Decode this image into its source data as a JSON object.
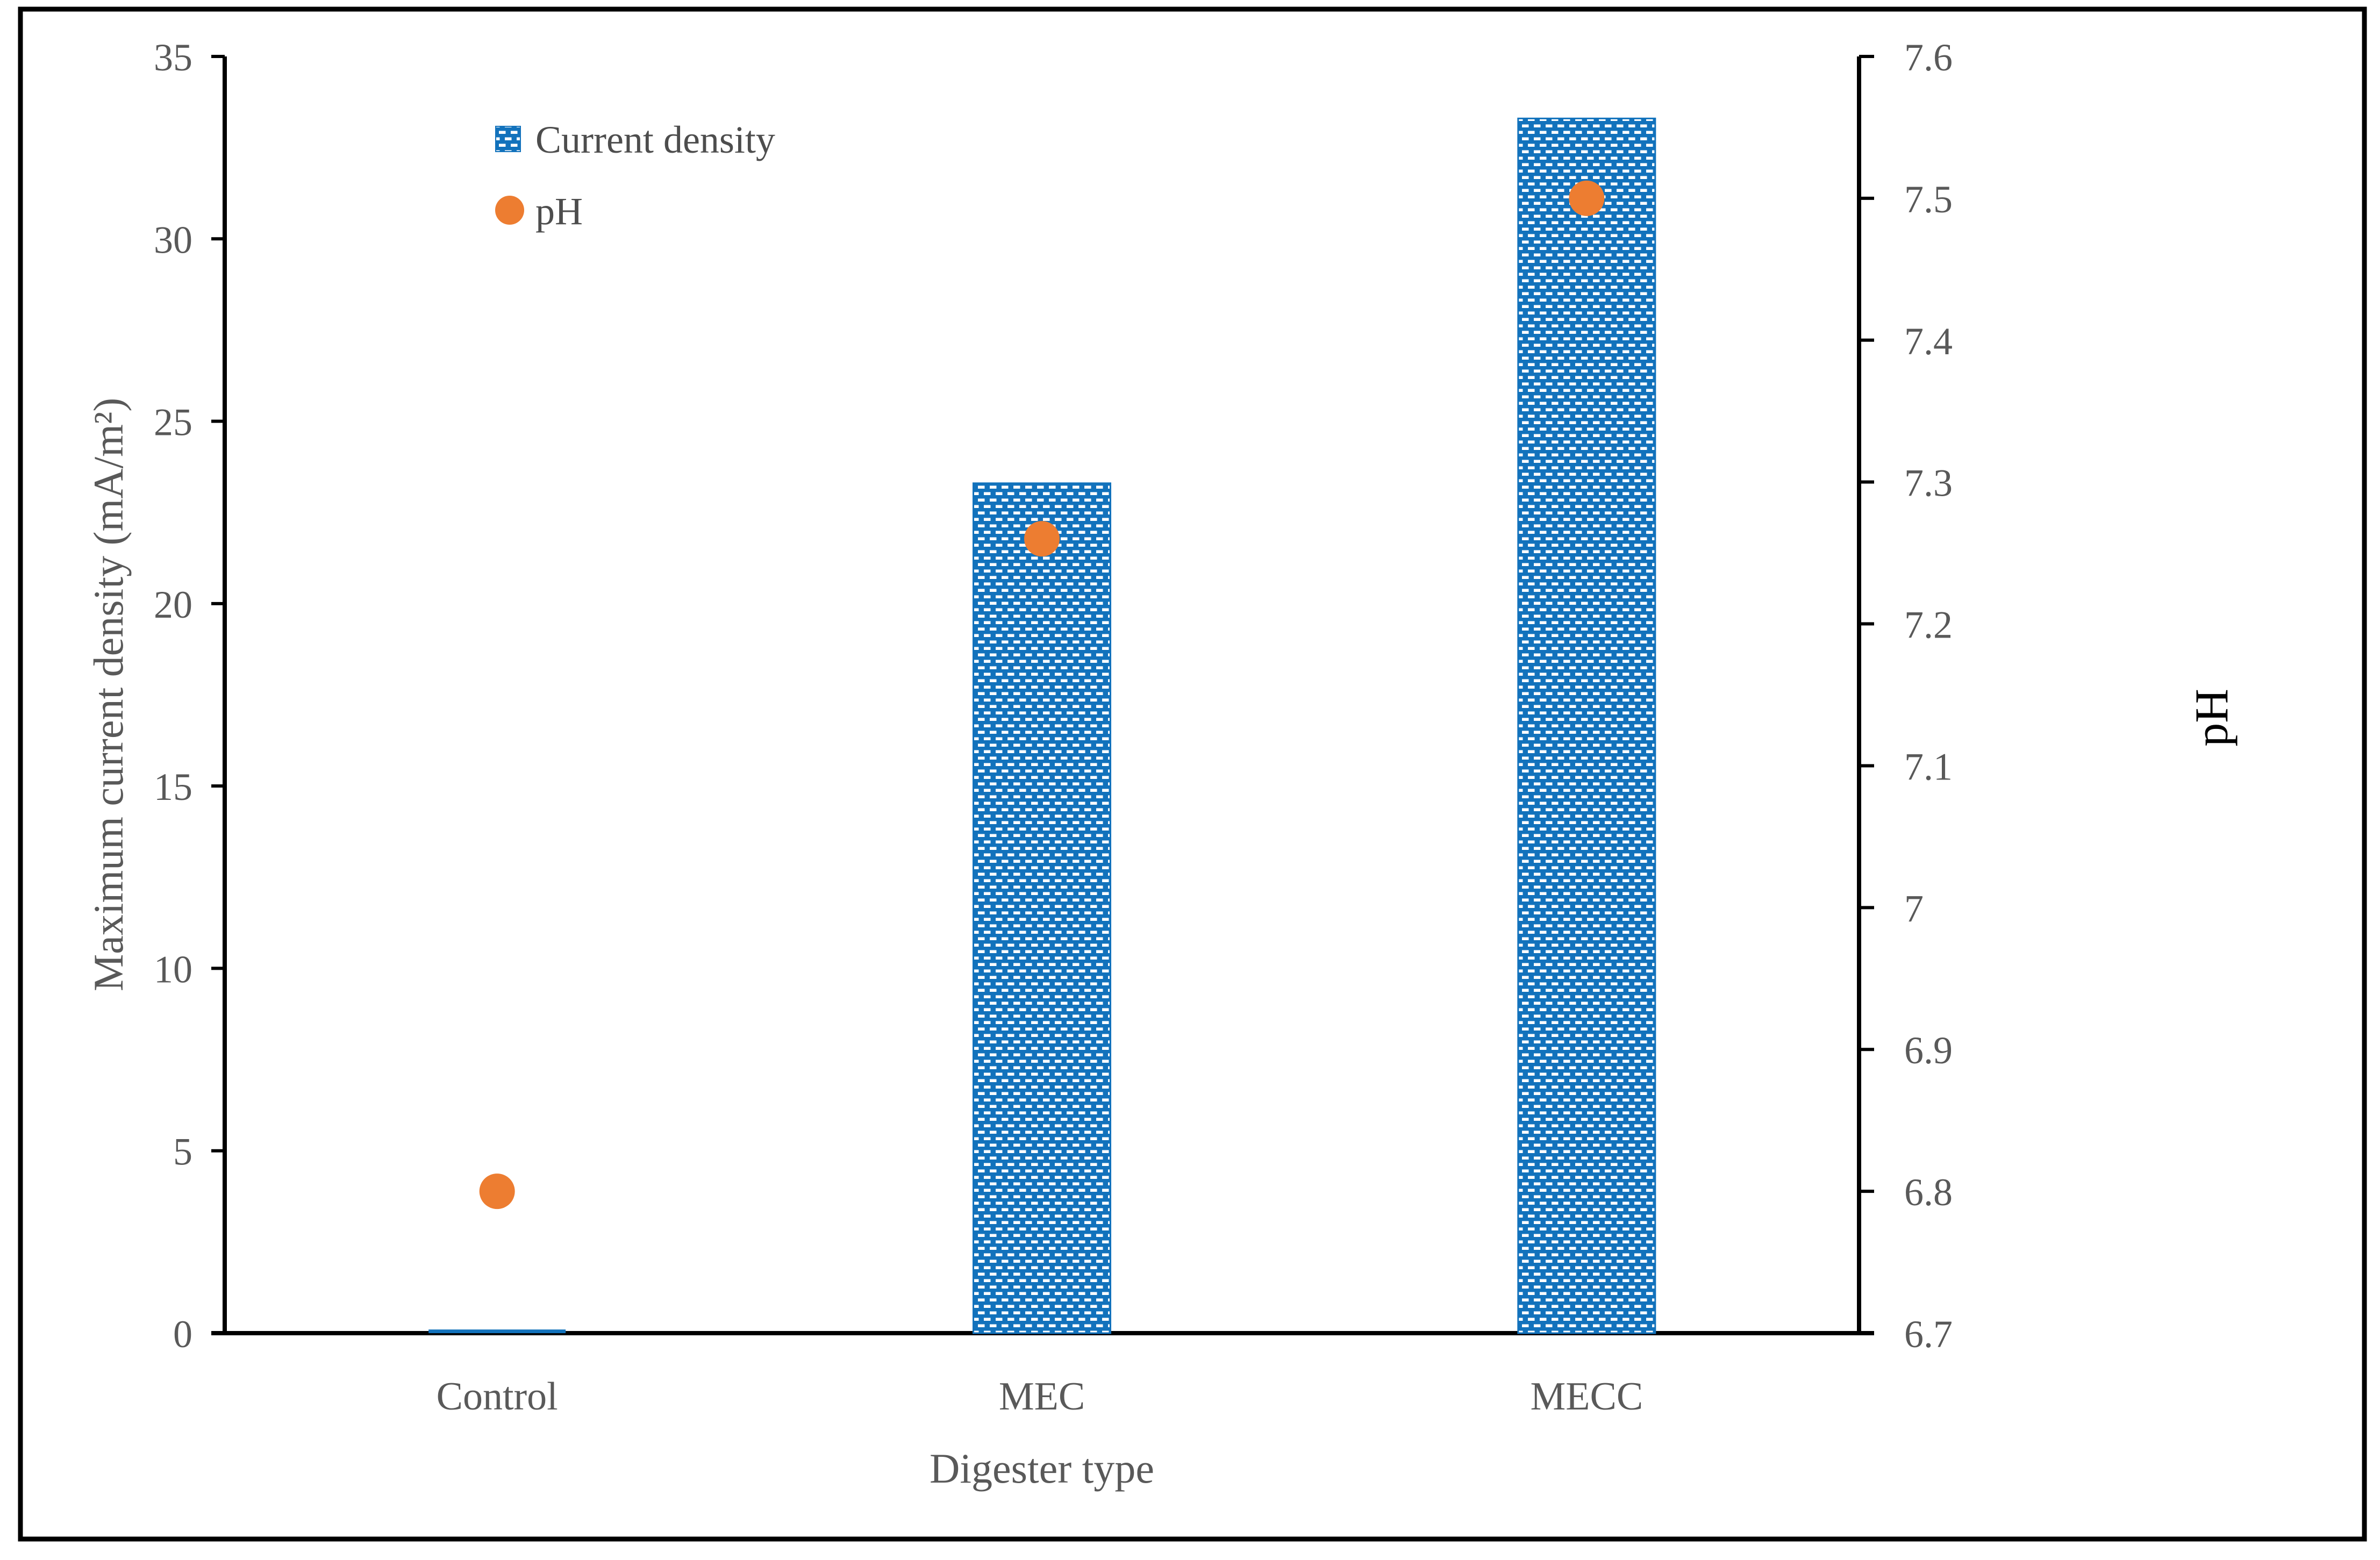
{
  "figure": {
    "background": "#ffffff",
    "border_color": "#000000"
  },
  "colors": {
    "bar_blue": "#1272BC",
    "bar_pattern_dash": "#ffffff",
    "dot_orange": "#ED7D31",
    "axis_line": "#000000",
    "label_gray": "#595959",
    "legend_text": "#4d4d4d"
  },
  "legend": {
    "position": "top-left-inside",
    "items": [
      {
        "label": "Current density",
        "marker": "patterned-square"
      },
      {
        "label": "pH",
        "marker": "circle"
      }
    ]
  },
  "chart_data": {
    "type": "bar",
    "subtype": "combo-bar-scatter",
    "categories": [
      "Control",
      "MEC",
      "MECC"
    ],
    "series": [
      {
        "name": "Current density",
        "type": "bar",
        "axis": "left",
        "values": [
          0.1,
          23.3,
          33.3
        ]
      },
      {
        "name": "pH",
        "type": "scatter",
        "axis": "right",
        "values": [
          6.8,
          7.26,
          7.5
        ]
      }
    ],
    "title": "",
    "x_axis_title": "Digester type",
    "left_axis": {
      "title": "Maximum current density (mA/m²)",
      "min": 0,
      "max": 35,
      "step": 5,
      "tick_labels": [
        "0",
        "5",
        "10",
        "15",
        "20",
        "25",
        "30",
        "35"
      ]
    },
    "right_axis": {
      "title": "pH",
      "min": 6.7,
      "max": 7.6,
      "step": 0.1,
      "tick_labels": [
        "6.7",
        "6.8",
        "6.9",
        "7",
        "7.1",
        "7.2",
        "7.3",
        "7.4",
        "7.5",
        "7.6"
      ]
    },
    "grid": false,
    "legend_position": "top-left-inside"
  }
}
